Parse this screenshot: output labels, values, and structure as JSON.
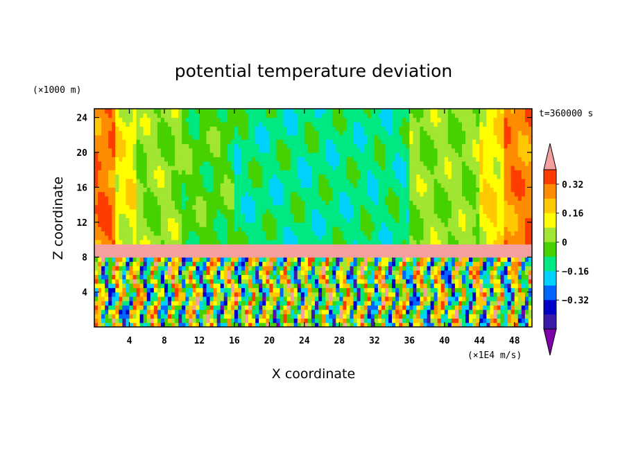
{
  "chart_data": {
    "type": "heatmap",
    "title": "potential temperature deviation",
    "xlabel": "X coordinate",
    "ylabel": "Z coordinate",
    "x_units": "(×1E4 m/s)",
    "y_units": "(×1000 m)",
    "time_label": "t=360000 s",
    "xlim": [
      0,
      50
    ],
    "ylim": [
      0,
      25
    ],
    "x_ticks": [
      4,
      8,
      12,
      16,
      20,
      24,
      28,
      32,
      36,
      40,
      44,
      48
    ],
    "y_ticks": [
      4,
      8,
      12,
      16,
      20,
      24
    ],
    "colorbar": {
      "levels": [
        -0.48,
        -0.4,
        -0.32,
        -0.24,
        -0.16,
        -0.08,
        0,
        0.08,
        0.16,
        0.24,
        0.32,
        0.4
      ],
      "labeled_levels": [
        "0.32",
        "0.16",
        "0",
        "−0.16",
        "−0.32"
      ],
      "colors": [
        "#7d00a8",
        "#3c1aa8",
        "#0000c8",
        "#0064ff",
        "#00d2ff",
        "#00e882",
        "#46d200",
        "#a0e632",
        "#ffff00",
        "#ffc800",
        "#ff8c00",
        "#ff3c00",
        "#f5a0a0"
      ],
      "extend": "both"
    },
    "field_summary": {
      "upper_layer_z": [
        9.5,
        25
      ],
      "boundary_layer_z": [
        0,
        9.5
      ],
      "description_columns": [
        {
          "x": [
            0,
            2.5
          ],
          "value": 0.3
        },
        {
          "x": [
            2.5,
            5
          ],
          "value": 0.12
        },
        {
          "x": [
            5,
            10
          ],
          "value": 0.02
        },
        {
          "x": [
            10,
            16
          ],
          "value": -0.04
        },
        {
          "x": [
            16,
            36
          ],
          "value": -0.12
        },
        {
          "x": [
            36,
            44
          ],
          "value": 0.02
        },
        {
          "x": [
            44,
            47
          ],
          "value": 0.14
        },
        {
          "x": [
            47,
            50
          ],
          "value": 0.28
        }
      ],
      "inversion_layer_value": 0.45,
      "inversion_layer_z": [
        8,
        9.5
      ]
    }
  }
}
